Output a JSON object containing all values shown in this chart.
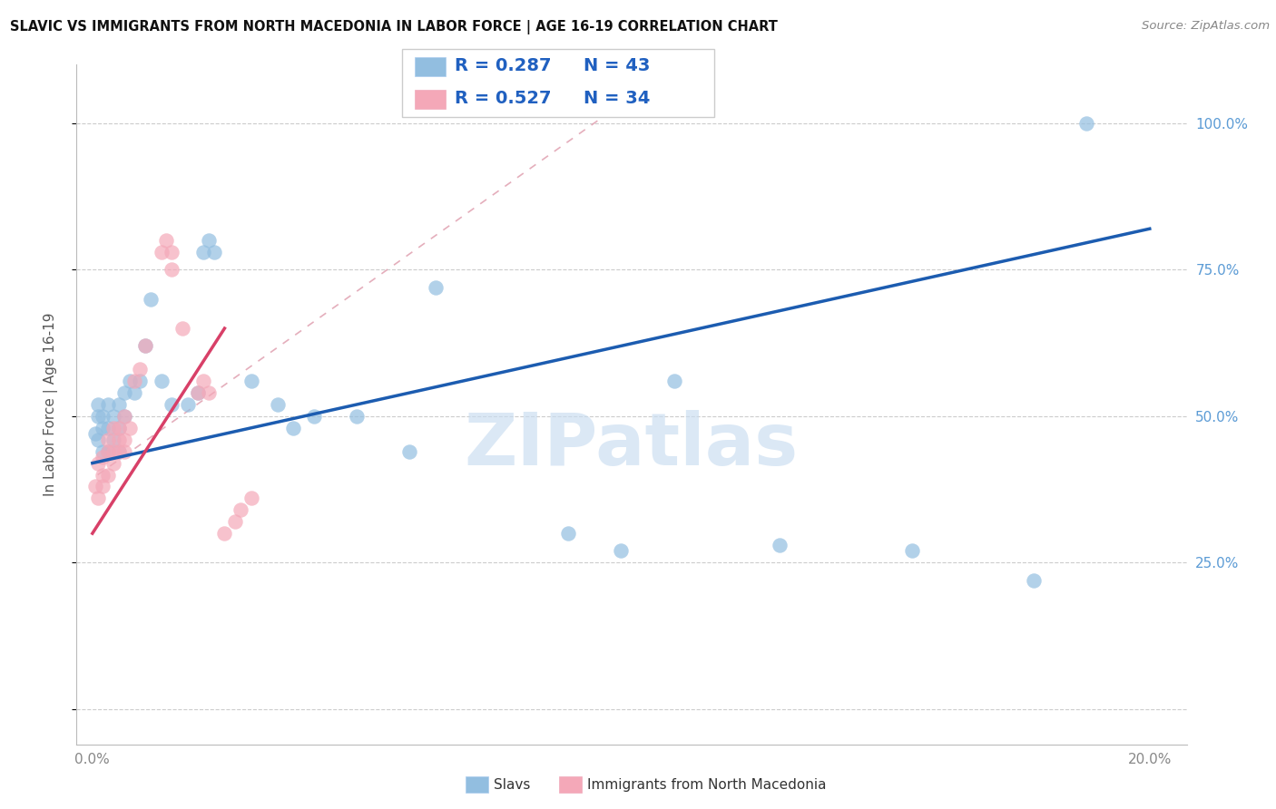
{
  "title": "SLAVIC VS IMMIGRANTS FROM NORTH MACEDONIA IN LABOR FORCE | AGE 16-19 CORRELATION CHART",
  "source": "Source: ZipAtlas.com",
  "ylabel_label": "In Labor Force | Age 16-19",
  "legend_label1": "Slavs",
  "legend_label2": "Immigrants from North Macedonia",
  "R1": "0.287",
  "N1": "43",
  "R2": "0.527",
  "N2": "34",
  "color_slavs": "#92BEE0",
  "color_immig": "#F4A8B8",
  "trendline_slavs": "#1C5CB0",
  "trendline_immig": "#D84068",
  "trendline_dashed_color": "#E0A0B0",
  "watermark_color": "#C8DCF0",
  "x_ticks": [
    0.0,
    0.05,
    0.1,
    0.15,
    0.2
  ],
  "x_tick_labels": [
    "0.0%",
    "",
    "",
    "",
    "20.0%"
  ],
  "y_ticks": [
    0.0,
    0.25,
    0.5,
    0.75,
    1.0
  ],
  "y_tick_labels_right": [
    "",
    "25.0%",
    "50.0%",
    "75.0%",
    "100.0%"
  ],
  "slavs_x": [
    0.0005,
    0.001,
    0.001,
    0.001,
    0.002,
    0.002,
    0.002,
    0.003,
    0.003,
    0.003,
    0.004,
    0.004,
    0.005,
    0.005,
    0.005,
    0.006,
    0.006,
    0.007,
    0.008,
    0.009,
    0.01,
    0.011,
    0.013,
    0.015,
    0.018,
    0.02,
    0.021,
    0.022,
    0.023,
    0.03,
    0.035,
    0.038,
    0.042,
    0.05,
    0.06,
    0.065,
    0.09,
    0.1,
    0.11,
    0.13,
    0.155,
    0.178,
    0.188
  ],
  "slavs_y": [
    0.47,
    0.46,
    0.5,
    0.52,
    0.44,
    0.48,
    0.5,
    0.44,
    0.48,
    0.52,
    0.46,
    0.5,
    0.44,
    0.48,
    0.52,
    0.5,
    0.54,
    0.56,
    0.54,
    0.56,
    0.62,
    0.7,
    0.56,
    0.52,
    0.52,
    0.54,
    0.78,
    0.8,
    0.78,
    0.56,
    0.52,
    0.48,
    0.5,
    0.5,
    0.44,
    0.72,
    0.3,
    0.27,
    0.56,
    0.28,
    0.27,
    0.22,
    1.0
  ],
  "immig_x": [
    0.0005,
    0.001,
    0.001,
    0.002,
    0.002,
    0.002,
    0.003,
    0.003,
    0.003,
    0.004,
    0.004,
    0.004,
    0.005,
    0.005,
    0.005,
    0.006,
    0.006,
    0.006,
    0.007,
    0.008,
    0.009,
    0.01,
    0.013,
    0.014,
    0.015,
    0.015,
    0.017,
    0.02,
    0.021,
    0.022,
    0.025,
    0.027,
    0.028,
    0.03
  ],
  "immig_y": [
    0.38,
    0.42,
    0.36,
    0.43,
    0.4,
    0.38,
    0.46,
    0.44,
    0.4,
    0.44,
    0.42,
    0.48,
    0.44,
    0.46,
    0.48,
    0.5,
    0.44,
    0.46,
    0.48,
    0.56,
    0.58,
    0.62,
    0.78,
    0.8,
    0.78,
    0.75,
    0.65,
    0.54,
    0.56,
    0.54,
    0.3,
    0.32,
    0.34,
    0.36
  ]
}
